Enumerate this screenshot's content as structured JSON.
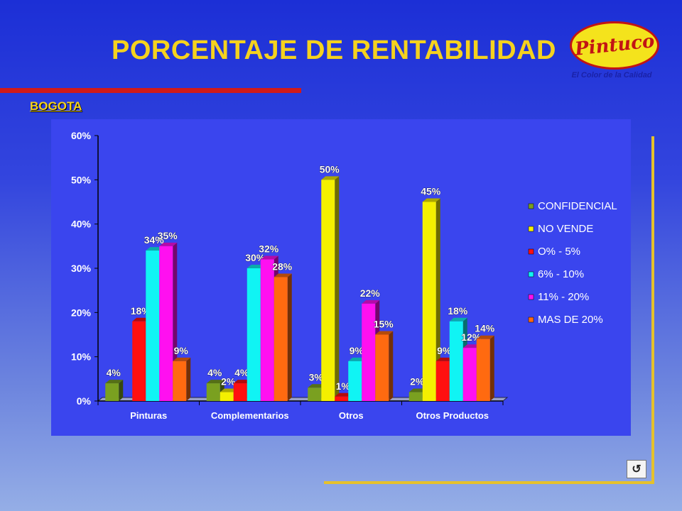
{
  "slide": {
    "title": "PORCENTAJE DE RENTABILIDAD",
    "subtitle": "BOGOTA",
    "title_color": "#f5d21e",
    "subtitle_color": "#f5d21e",
    "accent_bar_color": "#d11a1a",
    "frame_color": "#e5c12c"
  },
  "logo": {
    "brand": "Pintuco",
    "tagline": "El Color de la Calidad",
    "fill_color": "#f4e31c",
    "text_color": "#c21414",
    "tagline_color": "#1a22a8"
  },
  "nav": {
    "button_icon": "return-icon",
    "button_label": "↺"
  },
  "chart_data": {
    "type": "bar",
    "categories": [
      "Pinturas",
      "Complementarios",
      "Otros",
      "Otros Productos"
    ],
    "ylim": [
      0,
      60
    ],
    "yticks": [
      0,
      10,
      20,
      30,
      40,
      50,
      60
    ],
    "ytick_labels": [
      "0%",
      "10%",
      "20%",
      "30%",
      "40%",
      "50%",
      "60%"
    ],
    "xlabel": "",
    "ylabel": "",
    "grid": false,
    "legend_position": "right",
    "series": [
      {
        "name": "CONFIDENCIAL",
        "color": "#7aa020",
        "values": [
          4,
          4,
          3,
          2
        ],
        "labels": [
          "4%",
          "4%",
          "3%",
          "2%"
        ]
      },
      {
        "name": "NO VENDE",
        "color": "#f4f000",
        "values": [
          null,
          2,
          50,
          45
        ],
        "labels": [
          null,
          "2%",
          "50%",
          "45%"
        ]
      },
      {
        "name": "O% - 5%",
        "color": "#ff1010",
        "values": [
          18,
          4,
          1,
          9
        ],
        "labels": [
          "18%",
          "4%",
          "1%",
          "9%"
        ]
      },
      {
        "name": "6% - 10%",
        "color": "#10f4f4",
        "values": [
          34,
          30,
          9,
          18
        ],
        "labels": [
          "34%",
          "30%",
          "9%",
          "18%"
        ]
      },
      {
        "name": "11% - 20%",
        "color": "#ff10f0",
        "values": [
          35,
          32,
          22,
          12
        ],
        "labels": [
          "35%",
          "32%",
          "22%",
          "12%"
        ]
      },
      {
        "name": "MAS DE 20%",
        "color": "#ff6a10",
        "values": [
          9,
          28,
          15,
          14
        ],
        "labels": [
          "9%",
          "28%",
          "15%",
          "14%"
        ]
      }
    ]
  }
}
